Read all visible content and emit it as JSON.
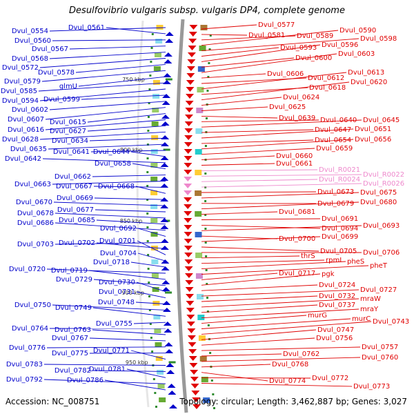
{
  "header": {
    "title": "Desulfovibrio vulgaris subsp. vulgaris DP4, complete genome"
  },
  "footer": {
    "accession": "Accession: NC_008751",
    "summary": "Topology: circular; Length: 3,462,887 bp; Genes: 3,027"
  },
  "colors": {
    "plus_strand": "#0000cc",
    "minus_strand": "#e00000",
    "rna": "#ee88cc",
    "backbone": "#999999",
    "tick": "#2e8b2e"
  },
  "scale_ticks": [
    "750 kbp",
    "800 kbp",
    "850 kbp",
    "900 kbp",
    "950 kbp"
  ],
  "left_labels": [
    "Dvul_0554",
    "Dvul_0561",
    "Dvul_0560",
    "Dvul_0567",
    "Dvul_0568",
    "Dvul_0572",
    "Dvul_0578",
    "Dvul_0579",
    "glmU",
    "Dvul_0585",
    "Dvul_0594",
    "Dvul_0599",
    "Dvul_0602",
    "Dvul_0607",
    "Dvul_0615",
    "Dvul_0616",
    "Dvul_0627",
    "Dvul_0628",
    "Dvul_0634",
    "Dvul_0635",
    "Dvul_0641",
    "Dvul_0644",
    "Dvul_0642",
    "Dvul_0658",
    "Dvul_0662",
    "Dvul_0663",
    "Dvul_0667",
    "Dvul_0668",
    "Dvul_0669",
    "Dvul_0670",
    "Dvul_0677",
    "Dvul_0678",
    "Dvul_0685",
    "Dvul_0686",
    "Dvul_0692",
    "Dvul_0703",
    "Dvul_0702",
    "Dvul_0701",
    "Dvul_0704",
    "Dvul_0718",
    "Dvul_0720",
    "Dvul_0719",
    "Dvul_0729",
    "Dvul_0730",
    "Dvul_0731",
    "Dvul_0748",
    "Dvul_0750",
    "Dvul_0749",
    "Dvul_0755",
    "Dvul_0764",
    "Dvul_0763",
    "Dvul_0767",
    "Dvul_0776",
    "Dvul_0775",
    "Dvul_0771",
    "Dvul_0783",
    "Dvul_0782",
    "Dvul_0781",
    "Dvul_0792",
    "Dvul_0786"
  ],
  "right_labels": [
    "Dvul_0577",
    "Dvul_0581",
    "Dvul_0589",
    "Dvul_0590",
    "Dvul_0598",
    "Dvul_0593",
    "Dvul_0596",
    "Dvul_0600",
    "Dvul_0603",
    "Dvul_0606",
    "Dvul_0612",
    "Dvul_0613",
    "Dvul_0618",
    "Dvul_0620",
    "Dvul_0624",
    "Dvul_0625",
    "Dvul_0639",
    "Dvul_0640",
    "Dvul_0645",
    "Dvul_0647",
    "Dvul_0651",
    "Dvul_0654",
    "Dvul_0656",
    "Dvul_0659",
    "Dvul_0660",
    "Dvul_0661",
    "Dvul_R0021",
    "Dvul_R0022",
    "Dvul_R0024",
    "Dvul_R0026",
    "Dvul_0673",
    "Dvul_0675",
    "Dvul_0679",
    "Dvul_0680",
    "Dvul_0681",
    "Dvul_0691",
    "Dvul_0694",
    "Dvul_0693",
    "Dvul_0700",
    "Dvul_0699",
    "Dvul_0705",
    "Dvul_0706",
    "thrS",
    "rpmI",
    "pheS",
    "pheT",
    "Dvul_0717",
    "pgk",
    "Dvul_0724",
    "Dvul_0727",
    "Dvul_0732",
    "mraW",
    "Dvul_0737",
    "mraY",
    "murG",
    "murC",
    "Dvul_0743",
    "Dvul_0747",
    "Dvul_0756",
    "Dvul_0757",
    "Dvul_0762",
    "Dvul_0760",
    "Dvul_0768",
    "Dvul_0774",
    "Dvul_0772",
    "Dvul_0773"
  ]
}
